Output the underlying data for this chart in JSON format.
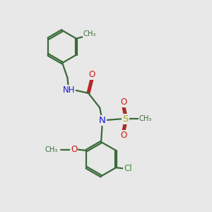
{
  "background_color": "#e8e8e8",
  "bond_color": "#3a6a3a",
  "N_color": "#1a1acc",
  "O_color": "#cc1a1a",
  "S_color": "#aaaa00",
  "Cl_color": "#3a8a3a",
  "line_width": 1.6,
  "figsize": [
    3.0,
    3.0
  ],
  "dpi": 100,
  "xlim": [
    0,
    10
  ],
  "ylim": [
    0,
    10
  ]
}
